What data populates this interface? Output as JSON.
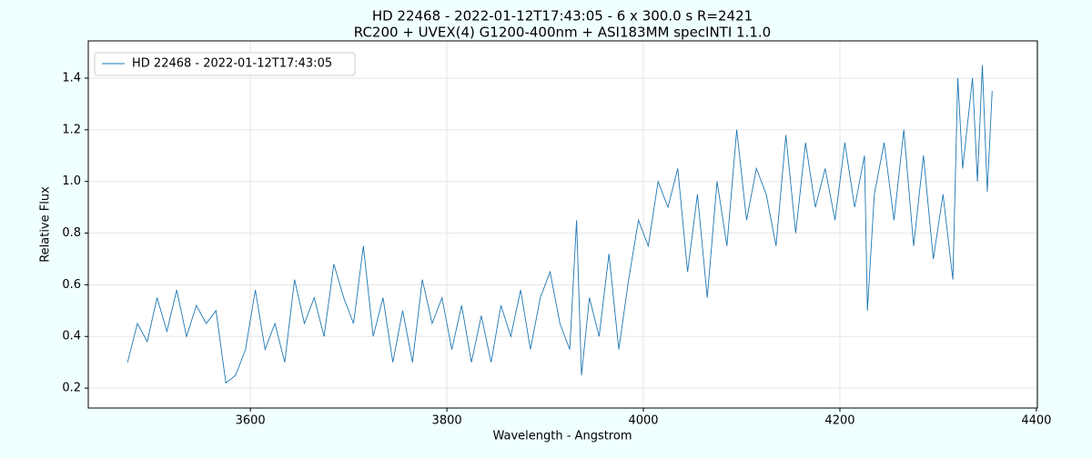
{
  "chart_data": {
    "type": "line",
    "title": "HD 22468 - 2022-01-12T17:43:05 - 6 x 300.0 s  R=2421",
    "subtitle": "RC200 + UVEX(4) G1200-400nm + ASI183MM   specINTI 1.1.0",
    "x_label": "Wavelength - Angstrom",
    "y_label": "Relative Flux",
    "x": [
      3475,
      3485,
      3495,
      3505,
      3515,
      3525,
      3535,
      3545,
      3555,
      3565,
      3575,
      3585,
      3595,
      3605,
      3615,
      3625,
      3635,
      3645,
      3655,
      3665,
      3675,
      3685,
      3695,
      3705,
      3715,
      3725,
      3735,
      3745,
      3755,
      3765,
      3775,
      3785,
      3795,
      3805,
      3815,
      3825,
      3835,
      3845,
      3855,
      3865,
      3875,
      3885,
      3895,
      3905,
      3915,
      3925,
      3932,
      3937,
      3945,
      3955,
      3965,
      3975,
      3985,
      3995,
      4005,
      4015,
      4025,
      4035,
      4045,
      4055,
      4065,
      4075,
      4085,
      4095,
      4105,
      4115,
      4125,
      4135,
      4145,
      4155,
      4165,
      4175,
      4185,
      4195,
      4205,
      4215,
      4225,
      4228,
      4235,
      4245,
      4255,
      4265,
      4275,
      4285,
      4295,
      4305,
      4315,
      4320,
      4325,
      4335,
      4340,
      4345,
      4350,
      4355
    ],
    "series": [
      {
        "name": "HD 22468 - 2022-01-12T17:43:05",
        "color": "#1f77b4",
        "values": [
          0.3,
          0.45,
          0.38,
          0.55,
          0.42,
          0.58,
          0.4,
          0.52,
          0.45,
          0.5,
          0.22,
          0.25,
          0.35,
          0.58,
          0.35,
          0.45,
          0.3,
          0.62,
          0.45,
          0.55,
          0.4,
          0.68,
          0.55,
          0.45,
          0.75,
          0.4,
          0.55,
          0.3,
          0.5,
          0.3,
          0.62,
          0.45,
          0.55,
          0.35,
          0.52,
          0.3,
          0.48,
          0.3,
          0.52,
          0.4,
          0.58,
          0.35,
          0.55,
          0.65,
          0.45,
          0.35,
          0.85,
          0.25,
          0.55,
          0.4,
          0.72,
          0.35,
          0.62,
          0.85,
          0.75,
          1.0,
          0.9,
          1.05,
          0.65,
          0.95,
          0.55,
          1.0,
          0.75,
          1.2,
          0.85,
          1.05,
          0.95,
          0.75,
          1.18,
          0.8,
          1.15,
          0.9,
          1.05,
          0.85,
          1.15,
          0.9,
          1.1,
          0.5,
          0.95,
          1.15,
          0.85,
          1.2,
          0.75,
          1.1,
          0.7,
          0.95,
          0.62,
          1.4,
          1.05,
          1.4,
          1.0,
          1.45,
          0.96,
          1.35
        ]
      }
    ],
    "xlim": [
      3435,
      4401
    ],
    "ylim": [
      0.123,
      1.544
    ],
    "xticks": [
      3600,
      3800,
      4000,
      4200,
      4400
    ],
    "yticks": [
      0.2,
      0.4,
      0.6,
      0.8,
      {
        "value": 1,
        "label": "1.0"
      },
      1.2,
      1.4
    ],
    "grid": true,
    "legend": "upper left"
  }
}
